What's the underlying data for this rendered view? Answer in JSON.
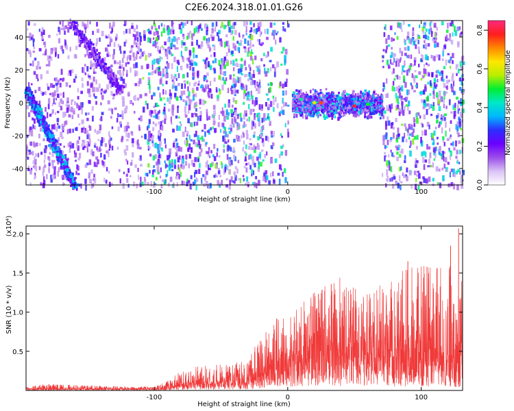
{
  "chart_data": [
    {
      "type": "heatmap",
      "title": "C2E6.2024.318.01.01.G26",
      "xlabel": "Height of straight line (km)",
      "ylabel": "Frequency (Hz)",
      "xlim": [
        -196,
        131
      ],
      "ylim": [
        -50,
        50
      ],
      "x_ticks": [
        -100,
        0,
        100
      ],
      "x_tick_labels": [
        "-100",
        "0",
        "100"
      ],
      "y_ticks": [
        -40,
        -20,
        0,
        20,
        40
      ],
      "y_tick_labels": [
        "-40",
        "-20",
        "0",
        "20",
        "40"
      ],
      "colorbar": {
        "label": "Normalized spectral amplitude",
        "range": [
          0.0,
          0.85
        ],
        "ticks": [
          0.0,
          0.2,
          0.4,
          0.6,
          0.8
        ],
        "tick_labels": [
          "0.0",
          "0.2",
          "0.4",
          "0.6",
          "0.8"
        ],
        "colormap": [
          "#ffffff",
          "#d9c3f5",
          "#9d4dea",
          "#6a00ff",
          "#2d2dff",
          "#00b8ff",
          "#00e8c8",
          "#00ee33",
          "#b8ee00",
          "#ffe600",
          "#ff8800",
          "#ff1e1e",
          "#ff2a7d"
        ]
      },
      "features": [
        {
          "x": -196,
          "y": 6,
          "amplitude": 0.35
        },
        {
          "x": -185,
          "y": -4,
          "amplitude": 0.4
        },
        {
          "x": -176,
          "y": -20,
          "amplitude": 0.35
        },
        {
          "x": -168,
          "y": -33,
          "amplitude": 0.4
        },
        {
          "x": -162,
          "y": -45,
          "amplitude": 0.35
        },
        {
          "x": 10,
          "y": 2,
          "amplitude": 0.45
        },
        {
          "x": 20,
          "y": 0,
          "amplitude": 0.6
        },
        {
          "x": 25,
          "y": 0,
          "amplitude": 0.75
        },
        {
          "x": 50,
          "y": -2,
          "amplitude": 0.8
        },
        {
          "x": 60,
          "y": -1,
          "amplitude": 0.5
        },
        {
          "x": 100,
          "y": 6,
          "amplitude": 0.4
        }
      ]
    },
    {
      "type": "line",
      "title": "",
      "xlabel": "Height of straight line (km)",
      "ylabel": "SNR (10 * v/v)",
      "y_scale_label": "(x10⁴)",
      "xlim": [
        -196,
        131
      ],
      "ylim": [
        0,
        2.1
      ],
      "x_ticks": [
        -100,
        0,
        100
      ],
      "x_tick_labels": [
        "-100",
        "0",
        "100"
      ],
      "y_ticks": [
        0.5,
        1.0,
        1.5,
        2.0
      ],
      "y_tick_labels": [
        "0.5",
        "1.0",
        "1.5",
        "2.0"
      ],
      "series": [
        {
          "color": "#f03a3a",
          "x": [
            -196,
            -180,
            -160,
            -140,
            -120,
            -100,
            -90,
            -80,
            -70,
            -60,
            -50,
            -40,
            -30,
            -25,
            -20,
            -10,
            0,
            10,
            20,
            30,
            40,
            50,
            60,
            70,
            80,
            90,
            100,
            110,
            120,
            125,
            131
          ],
          "envelope": [
            0.06,
            0.08,
            0.07,
            0.06,
            0.05,
            0.05,
            0.12,
            0.25,
            0.3,
            0.32,
            0.35,
            0.38,
            0.35,
            0.55,
            0.65,
            0.95,
            0.9,
            1.1,
            1.25,
            1.35,
            1.45,
            1.3,
            1.25,
            1.35,
            1.4,
            1.7,
            1.6,
            1.55,
            1.8,
            1.3,
            1.6
          ],
          "typical": [
            0.02,
            0.02,
            0.02,
            0.02,
            0.02,
            0.02,
            0.04,
            0.08,
            0.1,
            0.1,
            0.11,
            0.12,
            0.12,
            0.2,
            0.25,
            0.35,
            0.4,
            0.45,
            0.5,
            0.5,
            0.55,
            0.5,
            0.45,
            0.5,
            0.5,
            0.5,
            0.48,
            0.45,
            0.45,
            0.4,
            0.45
          ],
          "peaks": [
            {
              "x": 128,
              "y": 2.07
            },
            {
              "x": 122,
              "y": 1.85
            },
            {
              "x": 90,
              "y": 1.65
            }
          ]
        }
      ]
    }
  ]
}
